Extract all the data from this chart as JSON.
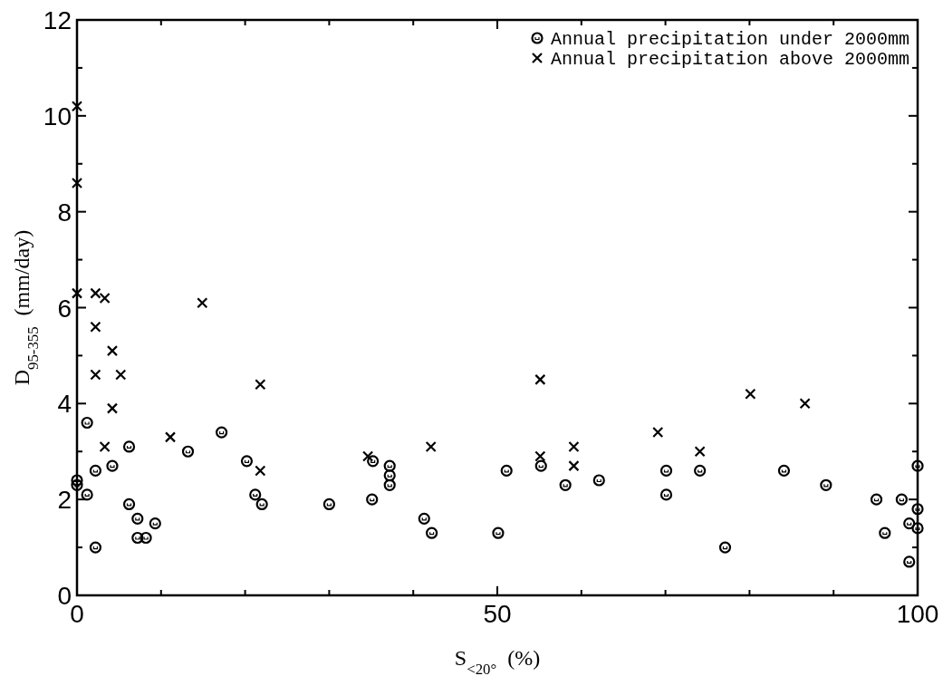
{
  "chart_data": {
    "type": "scatter",
    "xlabel": "S$_{<20°}$  (%)",
    "ylabel": "D$_{95-355}$  (mm/day)",
    "xlim": [
      0,
      100
    ],
    "ylim": [
      0,
      12
    ],
    "xticks": [
      0,
      {
        "value": 10,
        "label": null
      },
      {
        "value": 20,
        "label": null
      },
      {
        "value": 30,
        "label": null
      },
      {
        "value": 40,
        "label": null
      },
      50,
      {
        "value": 60,
        "label": null
      },
      {
        "value": 70,
        "label": null
      },
      {
        "value": 80,
        "label": null
      },
      {
        "value": 90,
        "label": null
      },
      100
    ],
    "yticks": [
      0,
      {
        "value": 1,
        "label": null
      },
      2,
      {
        "value": 3,
        "label": null
      },
      4,
      {
        "value": 5,
        "label": null
      },
      6,
      {
        "value": 7,
        "label": null
      },
      8,
      {
        "value": 9,
        "label": null
      },
      10,
      {
        "value": 11,
        "label": null
      },
      12
    ],
    "grid": false,
    "legend": "top right",
    "series": [
      {
        "name": "Annual precipitation under 2000mm",
        "color": "#000000",
        "marker": "circle",
        "x": [
          0,
          0,
          1.2,
          1.2,
          2.2,
          2.2,
          4.2,
          6.2,
          6.2,
          7.2,
          7.2,
          8.2,
          9.3,
          13.2,
          17.2,
          20.2,
          21.2,
          22.0,
          30.0,
          35.2,
          35.1,
          37.2,
          37.2,
          37.2,
          41.3,
          42.2,
          50.1,
          51.1,
          55.2,
          58.1,
          62.1,
          70.1,
          70.1,
          74.1,
          77.1,
          84.1,
          89.1,
          95.1,
          96.1,
          98.1,
          99.0,
          99.0,
          100,
          100,
          100
        ],
        "values": [
          2.4,
          2.3,
          3.6,
          2.1,
          1.0,
          2.6,
          2.7,
          3.1,
          1.9,
          1.6,
          1.2,
          1.2,
          1.5,
          3.0,
          3.4,
          2.8,
          2.1,
          1.9,
          1.9,
          2.8,
          2.0,
          2.7,
          2.5,
          2.3,
          1.6,
          1.3,
          1.3,
          2.6,
          2.7,
          2.3,
          2.4,
          2.6,
          2.1,
          2.6,
          1.0,
          2.6,
          2.3,
          2.0,
          1.3,
          2.0,
          1.5,
          0.7,
          2.7,
          1.8,
          1.4
        ]
      },
      {
        "name": "Annual precipitation above 2000mm",
        "color": "#000000",
        "marker": "cross",
        "x": [
          0,
          0,
          0,
          2.2,
          2.2,
          2.2,
          3.3,
          4.2,
          4.2,
          5.2,
          3.3,
          11.1,
          14.9,
          21.8,
          21.8,
          34.6,
          42.1,
          55.1,
          55.1,
          59.1,
          59.1,
          69.1,
          74.1,
          80.1,
          86.6
        ],
        "values": [
          10.2,
          8.6,
          6.3,
          6.3,
          5.6,
          4.6,
          6.2,
          5.1,
          3.9,
          4.6,
          3.1,
          3.3,
          6.1,
          4.4,
          2.6,
          2.9,
          3.1,
          4.5,
          2.9,
          3.1,
          2.7,
          3.4,
          3.0,
          4.2,
          4.0
        ]
      }
    ]
  }
}
